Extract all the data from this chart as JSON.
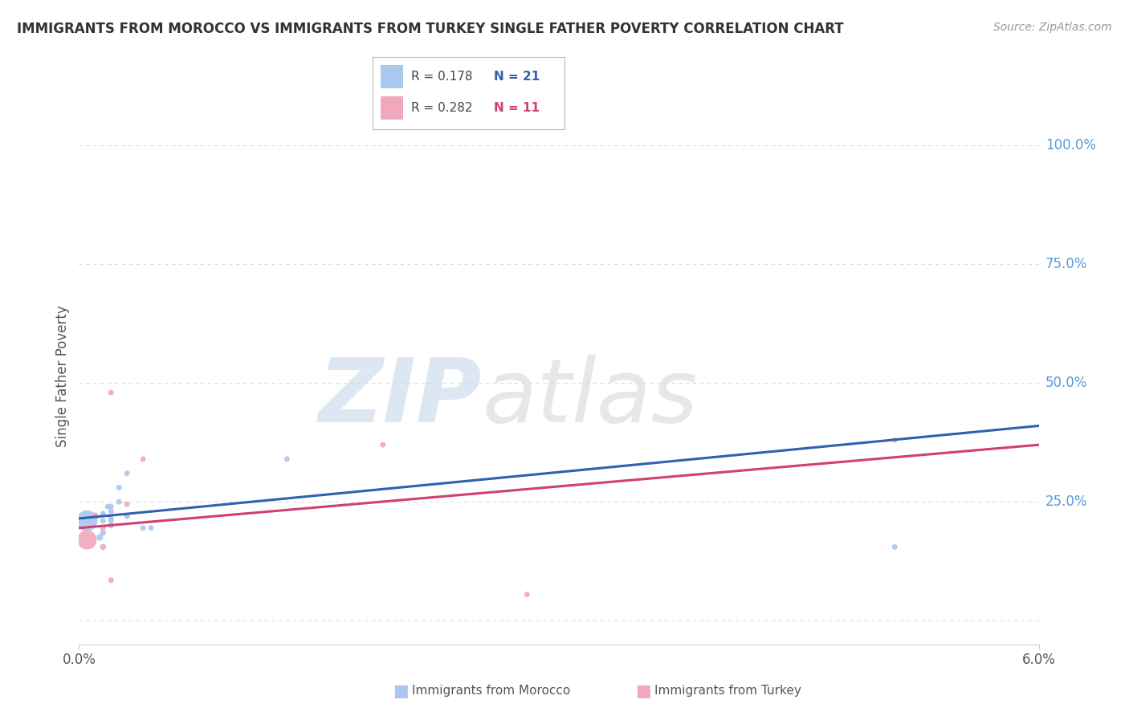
{
  "title": "IMMIGRANTS FROM MOROCCO VS IMMIGRANTS FROM TURKEY SINGLE FATHER POVERTY CORRELATION CHART",
  "source": "Source: ZipAtlas.com",
  "ylabel": "Single Father Poverty",
  "morocco_color": "#A8C8F0",
  "turkey_color": "#F0A8BC",
  "morocco_line_color": "#3060B0",
  "turkey_line_color": "#D04070",
  "legend_R_morocco": "R = 0.178",
  "legend_N_morocco": "N = 21",
  "legend_R_turkey": "R = 0.282",
  "legend_N_turkey": "N = 11",
  "xlim": [
    0.0,
    0.06
  ],
  "ylim": [
    -0.05,
    1.08
  ],
  "yticks": [
    0.0,
    0.25,
    0.5,
    0.75,
    1.0
  ],
  "morocco_x": [
    0.0005,
    0.001,
    0.0013,
    0.0015,
    0.0015,
    0.0015,
    0.0018,
    0.002,
    0.002,
    0.002,
    0.002,
    0.002,
    0.0025,
    0.0025,
    0.003,
    0.003,
    0.003,
    0.004,
    0.0045,
    0.013,
    0.051
  ],
  "morocco_y": [
    0.21,
    0.22,
    0.175,
    0.185,
    0.21,
    0.225,
    0.24,
    0.2,
    0.21,
    0.215,
    0.23,
    0.24,
    0.25,
    0.28,
    0.22,
    0.22,
    0.31,
    0.195,
    0.195,
    0.34,
    0.155
  ],
  "morocco_size": [
    350,
    40,
    35,
    30,
    25,
    25,
    25,
    25,
    25,
    25,
    25,
    25,
    25,
    25,
    25,
    25,
    25,
    25,
    25,
    25,
    25
  ],
  "turkey_x": [
    0.0005,
    0.001,
    0.0015,
    0.0015,
    0.002,
    0.002,
    0.003,
    0.004,
    0.019,
    0.028,
    0.051
  ],
  "turkey_y": [
    0.17,
    0.22,
    0.155,
    0.195,
    0.085,
    0.48,
    0.245,
    0.34,
    0.37,
    0.055,
    0.38
  ],
  "turkey_size": [
    300,
    35,
    30,
    25,
    25,
    25,
    25,
    25,
    25,
    25,
    25
  ],
  "morocco_trendline_x": [
    0.0,
    0.06
  ],
  "morocco_trendline_y": [
    0.215,
    0.41
  ],
  "turkey_trendline_x": [
    0.0,
    0.06
  ],
  "turkey_trendline_y": [
    0.195,
    0.37
  ],
  "background_color": "#ffffff",
  "grid_color": "#dddddd"
}
